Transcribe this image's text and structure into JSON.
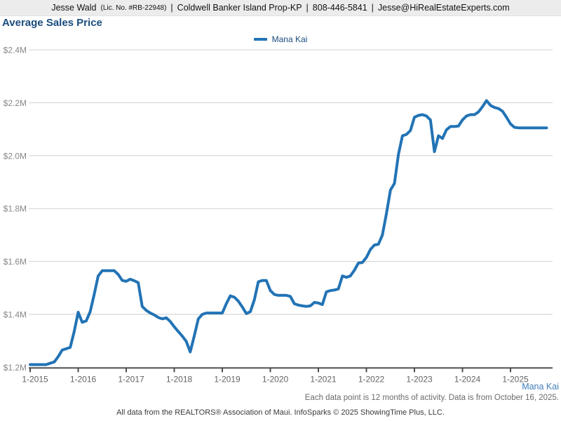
{
  "header": {
    "agent": "Jesse Wald",
    "license": "(Lic. No. #RB-22948)",
    "separator": "|",
    "brokerage": "Coldwell Banker Island Prop-KP",
    "phone": "808-446-5841",
    "email": "Jesse@HiRealEstateExperts.com"
  },
  "page_title": "Average Sales Price",
  "legend": {
    "label": "Mana Kai",
    "color": "#2273b5"
  },
  "series_label_bottom": "Mana Kai",
  "notes": {
    "data_note": "Each data point is 12 months of activity. Data is from October 16, 2025.",
    "attribution": "All data from the REALTORS® Association of Maui. InfoSparks © 2025 ShowingTime Plus, LLC."
  },
  "chart_data": {
    "type": "line",
    "title": "Average Sales Price",
    "unit": "USD millions",
    "x_interval": "monthly",
    "first_point": "2015-01",
    "last_point": "2025-10",
    "x_tick_labels": [
      "1-2015",
      "1-2016",
      "1-2017",
      "1-2018",
      "1-2019",
      "1-2020",
      "1-2021",
      "1-2022",
      "1-2023",
      "1-2024",
      "1-2025"
    ],
    "y_tick_labels": [
      "$1.2M",
      "$1.4M",
      "$1.6M",
      "$1.8M",
      "$2.0M",
      "$2.2M",
      "$2.4M"
    ],
    "ylim": [
      1.2,
      2.4
    ],
    "grid": "horizontal",
    "legend_position": "top-center",
    "series": [
      {
        "name": "Mana Kai",
        "color": "#2273b5",
        "values": [
          1.21,
          1.21,
          1.21,
          1.21,
          1.21,
          1.215,
          1.22,
          1.24,
          1.265,
          1.27,
          1.275,
          1.335,
          1.408,
          1.37,
          1.375,
          1.41,
          1.475,
          1.545,
          1.565,
          1.565,
          1.565,
          1.565,
          1.551,
          1.528,
          1.525,
          1.533,
          1.527,
          1.52,
          1.43,
          1.415,
          1.405,
          1.398,
          1.388,
          1.383,
          1.387,
          1.373,
          1.353,
          1.335,
          1.318,
          1.298,
          1.258,
          1.318,
          1.383,
          1.4,
          1.405,
          1.405,
          1.405,
          1.405,
          1.405,
          1.44,
          1.47,
          1.465,
          1.45,
          1.428,
          1.403,
          1.41,
          1.455,
          1.523,
          1.528,
          1.528,
          1.49,
          1.475,
          1.472,
          1.472,
          1.472,
          1.468,
          1.44,
          1.435,
          1.432,
          1.43,
          1.432,
          1.445,
          1.443,
          1.437,
          1.485,
          1.49,
          1.492,
          1.496,
          1.545,
          1.54,
          1.545,
          1.567,
          1.594,
          1.596,
          1.615,
          1.645,
          1.662,
          1.665,
          1.7,
          1.78,
          1.87,
          1.895,
          2.005,
          2.075,
          2.08,
          2.095,
          2.145,
          2.152,
          2.155,
          2.15,
          2.135,
          2.015,
          2.075,
          2.065,
          2.098,
          2.11,
          2.11,
          2.112,
          2.135,
          2.15,
          2.155,
          2.155,
          2.165,
          2.185,
          2.208,
          2.19,
          2.182,
          2.178,
          2.168,
          2.145,
          2.12,
          2.107,
          2.105,
          2.105,
          2.105,
          2.105,
          2.105,
          2.105,
          2.105,
          2.105
        ]
      }
    ]
  }
}
